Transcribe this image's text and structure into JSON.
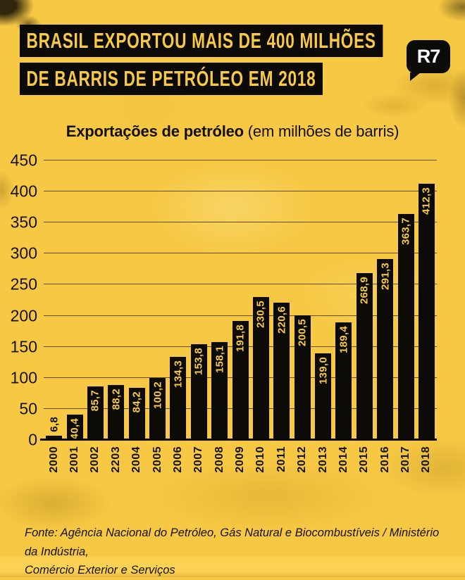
{
  "header": {
    "headline_lines": [
      "BRASIL EXPORTOU MAIS DE 400 MILHÕES",
      "DE BARRIS DE PETRÓLEO EM 2018"
    ],
    "logo_text": "R7"
  },
  "chart_data": {
    "type": "bar",
    "title_bold": "Exportações de petróleo",
    "title_rest": " (em milhões de barris)",
    "categories": [
      "2000",
      "2001",
      "2002",
      "2203",
      "2004",
      "2005",
      "2006",
      "2007",
      "2008",
      "2009",
      "2010",
      "2011",
      "2012",
      "2013",
      "2014",
      "2015",
      "2016",
      "2017",
      "2018"
    ],
    "values": [
      6.8,
      40.4,
      85.7,
      88.2,
      84.2,
      100.2,
      134.3,
      153.8,
      158.1,
      191.8,
      230.5,
      220.6,
      200.5,
      139.0,
      189.4,
      268.9,
      291.3,
      363.7,
      412.3
    ],
    "value_labels": [
      "6,8",
      "40,4",
      "85,7",
      "88,2",
      "84,2",
      "100,2",
      "134,3",
      "153,8",
      "158,1",
      "191,8",
      "230,5",
      "220,6",
      "200,5",
      "139,0",
      "189,4",
      "268,9",
      "291,3",
      "363,7",
      "412,3"
    ],
    "ylim": [
      0,
      450
    ],
    "yticks": [
      0,
      50,
      100,
      150,
      200,
      250,
      300,
      350,
      400,
      450
    ],
    "grid": "horizontal",
    "legend": "none",
    "bar_color": "#0d0b07",
    "label_color_inside": "#f7ca45",
    "label_color_outside": "#0d0b07"
  },
  "footer": {
    "source_lines": [
      "Fonte: Agência Nacional do Petróleo, Gás Natural e Biocombustíveis / Ministério da Indústria,",
      "Comércio Exterior e Serviços"
    ]
  },
  "colors": {
    "background_yellow": "#f6c843",
    "bar_black": "#0d0b07",
    "headline_text_yellow": "#f7c945",
    "logo_text_white": "#ffffff"
  }
}
